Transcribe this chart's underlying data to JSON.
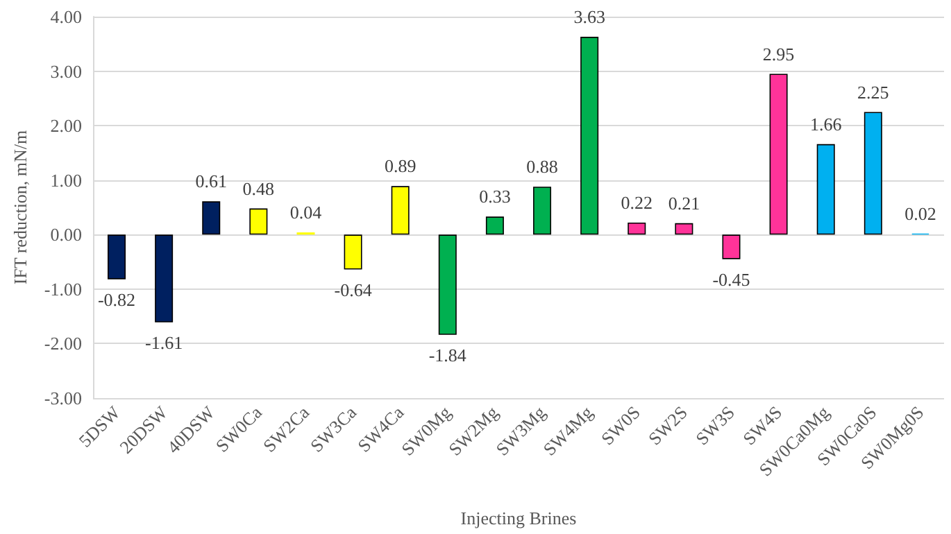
{
  "chart_data": {
    "type": "bar",
    "xlabel": "Injecting Brines",
    "ylabel": "IFT reduction, mN/m",
    "categories": [
      "5DSW",
      "20DSW",
      "40DSW",
      "SW0Ca",
      "SW2Ca",
      "SW3Ca",
      "SW4Ca",
      "SW0Mg",
      "SW2Mg",
      "SW3Mg",
      "SW4Mg",
      "SW0S",
      "SW2S",
      "SW3S",
      "SW4S",
      "SW0Ca0Mg",
      "SW0Ca0S",
      "SW0Mg0S"
    ],
    "values": [
      -0.82,
      -1.61,
      0.61,
      0.48,
      0.04,
      -0.64,
      0.89,
      -1.84,
      0.33,
      0.88,
      3.63,
      0.22,
      0.21,
      -0.45,
      2.95,
      1.66,
      2.25,
      0.02
    ],
    "colors": [
      "#002060",
      "#002060",
      "#002060",
      "#ffff00",
      "#ffff00",
      "#ffff00",
      "#ffff00",
      "#00b050",
      "#00b050",
      "#00b050",
      "#00b050",
      "#ff3399",
      "#ff3399",
      "#ff3399",
      "#ff3399",
      "#00b0f0",
      "#00b0f0",
      "#00b0f0"
    ],
    "ylim": [
      -3,
      4
    ],
    "yticks": [
      {
        "value": -3,
        "label": "-3.00"
      },
      {
        "value": -2,
        "label": "-2.00"
      },
      {
        "value": -1,
        "label": "-1.00"
      },
      {
        "value": 0,
        "label": "0.00"
      },
      {
        "value": 1,
        "label": "1.00"
      },
      {
        "value": 2,
        "label": "2.00"
      },
      {
        "value": 3,
        "label": "3.00"
      },
      {
        "value": 4,
        "label": "4.00"
      }
    ],
    "grid": "y",
    "data_labels": true
  }
}
